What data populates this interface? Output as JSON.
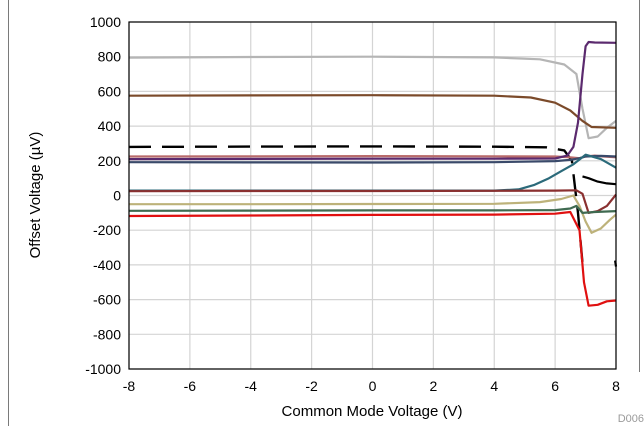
{
  "chart_data": {
    "type": "line",
    "title": "",
    "xlabel": "Common Mode Voltage (V)",
    "ylabel": "Offset Voltage (µV)",
    "xlim": [
      -8,
      8
    ],
    "ylim": [
      -1000,
      1000
    ],
    "xticks": [
      -8,
      -6,
      -4,
      -2,
      0,
      2,
      4,
      6,
      8
    ],
    "yticks": [
      -1000,
      -800,
      -600,
      -400,
      -200,
      0,
      200,
      400,
      600,
      800,
      1000
    ],
    "grid": true,
    "legend": "none",
    "corner_label": "D006",
    "series": [
      {
        "color": "#b5b5b5",
        "dash": false,
        "x": [
          -8,
          -4,
          0,
          4,
          5.5,
          6.3,
          6.7,
          6.9,
          7.1,
          7.4,
          7.7,
          8
        ],
        "y": [
          795,
          798,
          800,
          796,
          785,
          755,
          700,
          500,
          330,
          340,
          390,
          430
        ]
      },
      {
        "color": "#7b4a2a",
        "dash": false,
        "x": [
          -8,
          -4,
          0,
          4,
          5.2,
          6.0,
          6.5,
          6.9,
          7.2,
          8
        ],
        "y": [
          575,
          577,
          578,
          575,
          565,
          535,
          490,
          430,
          395,
          390
        ]
      },
      {
        "color": "#000000",
        "dash": true,
        "x": [
          -8,
          -4,
          0,
          4,
          5.7,
          6.3,
          6.55,
          6.75,
          6.9
        ],
        "y": [
          280,
          282,
          283,
          281,
          278,
          260,
          200,
          -100,
          -390
        ]
      },
      {
        "color": "#000000",
        "dash": false,
        "x": [
          6.9,
          7.1,
          7.4,
          7.7,
          8
        ],
        "y": [
          110,
          100,
          80,
          70,
          65
        ]
      },
      {
        "color": "#000000",
        "dash": false,
        "x": [
          7.97,
          8
        ],
        "y": [
          -375,
          -410
        ]
      },
      {
        "color": "#b86a6a",
        "dash": false,
        "x": [
          -8,
          -4,
          0,
          4,
          6,
          6.5,
          6.8,
          7.0,
          7.3,
          7.6,
          8
        ],
        "y": [
          225,
          226,
          227,
          226,
          225,
          220,
          215,
          225,
          230,
          225,
          220
        ]
      },
      {
        "color": "#5b2a6e",
        "dash": false,
        "x": [
          -8,
          -4,
          0,
          4,
          6,
          6.4,
          6.6,
          6.75,
          6.9,
          7.0,
          7.1,
          7.3,
          8
        ],
        "y": [
          210,
          211,
          212,
          212,
          213,
          230,
          280,
          420,
          700,
          860,
          885,
          882,
          880
        ]
      },
      {
        "color": "#3a4a6a",
        "dash": false,
        "x": [
          -8,
          -4,
          0,
          4,
          6,
          6.5,
          6.8,
          7.0,
          7.5,
          8
        ],
        "y": [
          192,
          191,
          190,
          192,
          198,
          205,
          215,
          225,
          228,
          225
        ]
      },
      {
        "color": "#2b6a7a",
        "dash": false,
        "x": [
          -8,
          -4,
          0,
          4,
          4.8,
          5.3,
          5.8,
          6.2,
          6.6,
          7.0,
          7.5,
          8
        ],
        "y": [
          28,
          28,
          28,
          28,
          35,
          60,
          100,
          140,
          180,
          235,
          210,
          160
        ]
      },
      {
        "color": "#8a3030",
        "dash": false,
        "x": [
          -8,
          -4,
          0,
          4,
          6,
          6.7,
          6.9,
          7.1,
          7.4,
          7.7,
          8
        ],
        "y": [
          25,
          26,
          26,
          27,
          28,
          30,
          10,
          -100,
          -90,
          -60,
          5
        ]
      },
      {
        "color": "#bdb27a",
        "dash": false,
        "x": [
          -8,
          -4,
          0,
          4,
          5.5,
          6.2,
          6.6,
          6.8,
          7.0,
          7.2,
          7.5,
          7.8,
          8
        ],
        "y": [
          -50,
          -50,
          -49,
          -48,
          -38,
          -20,
          0,
          -60,
          -150,
          -215,
          -190,
          -140,
          -110
        ]
      },
      {
        "color": "#3f6a50",
        "dash": false,
        "x": [
          -8,
          -4,
          0,
          4,
          6,
          6.5,
          6.7,
          6.9,
          7.3,
          8
        ],
        "y": [
          -88,
          -87,
          -86,
          -86,
          -84,
          -75,
          -60,
          -100,
          -95,
          -90
        ]
      },
      {
        "color": "#e01010",
        "dash": false,
        "x": [
          -8,
          -4,
          0,
          4,
          6,
          6.5,
          6.8,
          6.95,
          7.1,
          7.4,
          7.7,
          8
        ],
        "y": [
          -118,
          -115,
          -112,
          -110,
          -105,
          -95,
          -200,
          -500,
          -635,
          -630,
          -610,
          -605
        ]
      }
    ]
  }
}
